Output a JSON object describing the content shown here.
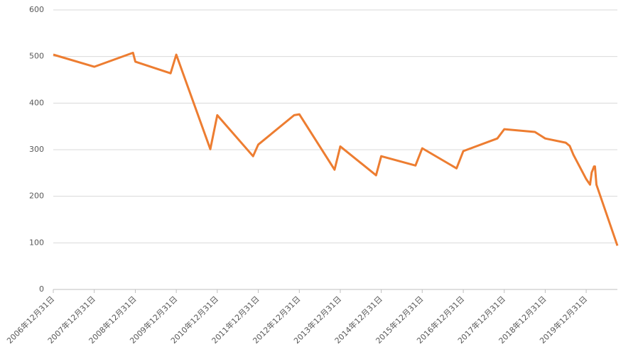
{
  "chart_data": {
    "type": "line",
    "x": [
      "2006-12-31",
      "2007-12-31",
      "2008-12-10",
      "2008-12-31",
      "2009-11-10",
      "2009-12-31",
      "2010-10-30",
      "2010-12-31",
      "2011-11-15",
      "2011-12-31",
      "2012-11-15",
      "2012-12-31",
      "2013-11-10",
      "2013-12-31",
      "2014-11-15",
      "2014-12-31",
      "2015-11-01",
      "2015-12-31",
      "2016-11-01",
      "2016-12-31",
      "2017-10-30",
      "2017-12-31",
      "2018-09-30",
      "2018-12-31",
      "2019-07-01",
      "2019-08-06",
      "2019-09-08",
      "2019-12-31",
      "2020-02-03",
      "2020-02-18",
      "2020-02-26",
      "2020-03-10",
      "2020-03-18",
      "2020-03-31",
      "2020-10-04"
    ],
    "series": [
      {
        "color": "#ed7d31",
        "values": [
          504,
          478,
          508,
          489,
          464,
          504,
          301,
          374,
          286,
          311,
          374,
          376,
          257,
          307,
          245,
          286,
          266,
          303,
          260,
          297,
          324,
          344,
          338,
          324,
          315,
          308,
          289,
          237,
          225,
          251,
          256,
          264,
          264,
          225,
          94
        ]
      }
    ],
    "xlim": [
      "2006-12-31",
      "2020-10-04"
    ],
    "xticks": [
      {
        "value": "2006-12-31",
        "label": "2006年12月31日"
      },
      {
        "value": "2007-12-31",
        "label": "2007年12月31日"
      },
      {
        "value": "2008-12-31",
        "label": "2008年12月31日"
      },
      {
        "value": "2009-12-31",
        "label": "2009年12月31日"
      },
      {
        "value": "2010-12-31",
        "label": "2010年12月31日"
      },
      {
        "value": "2011-12-31",
        "label": "2011年12月31日"
      },
      {
        "value": "2012-12-31",
        "label": "2012年12月31日"
      },
      {
        "value": "2013-12-31",
        "label": "2013年12月31日"
      },
      {
        "value": "2014-12-31",
        "label": "2014年12月31日"
      },
      {
        "value": "2015-12-31",
        "label": "2015年12月31日"
      },
      {
        "value": "2016-12-31",
        "label": "2016年12月31日"
      },
      {
        "value": "2017-12-31",
        "label": "2017年12月31日"
      },
      {
        "value": "2018-12-31",
        "label": "2018年12月31日"
      },
      {
        "value": "2019-12-31",
        "label": "2019年12月31日"
      }
    ],
    "ylim": [
      0,
      600
    ],
    "yticks": [
      0,
      100,
      200,
      300,
      400,
      500,
      600
    ],
    "grid": true
  }
}
